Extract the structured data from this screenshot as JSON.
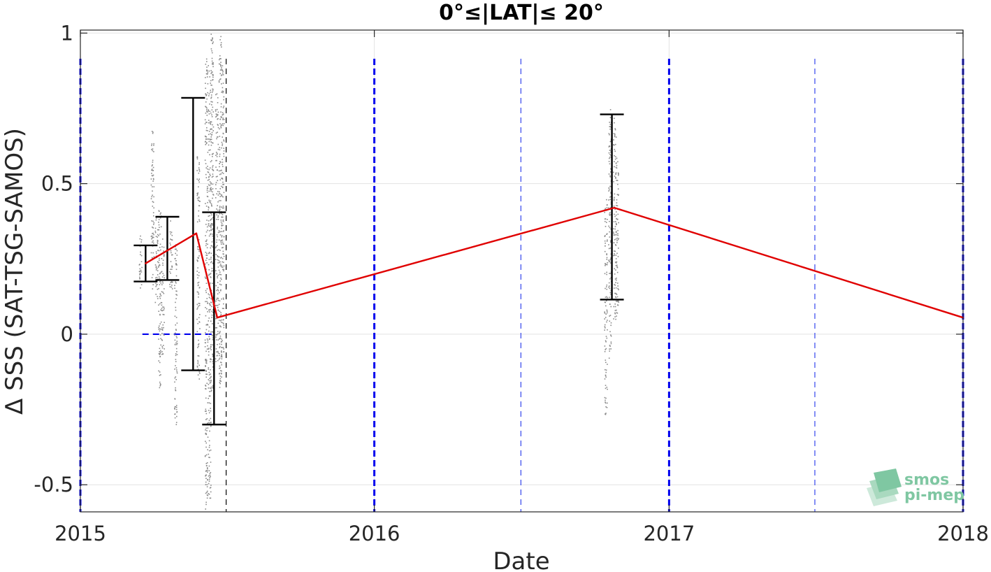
{
  "chart_data": {
    "type": "line",
    "title": "0°≤|LAT|≤ 20°",
    "xlabel": "Date",
    "ylabel": "Δ SSS (SAT-TSG-SAMOS)",
    "xlim": [
      "2015-01-01",
      "2018-01-01"
    ],
    "ylim": [
      -0.59,
      1.01
    ],
    "xticks": [
      {
        "date": "2015-01-01",
        "label": "2015"
      },
      {
        "date": "2016-01-01",
        "label": "2016"
      },
      {
        "date": "2017-01-01",
        "label": "2017"
      },
      {
        "date": "2018-01-01",
        "label": "2018"
      }
    ],
    "yticks": [
      {
        "value": 1,
        "label": "1"
      },
      {
        "value": 0.5,
        "label": "0.5"
      },
      {
        "value": 0,
        "label": "0"
      },
      {
        "value": -0.5,
        "label": "-0.5"
      }
    ],
    "grid": true,
    "series": [
      {
        "kind": "mean-line",
        "color": "#e00000",
        "points": [
          {
            "x": "2015-03-23",
            "y": 0.235
          },
          {
            "x": "2015-05-25",
            "y": 0.335
          },
          {
            "x": "2015-06-20",
            "y": 0.055
          },
          {
            "x": "2016-10-25",
            "y": 0.42
          },
          {
            "x": "2018-01-01",
            "y": 0.055
          }
        ]
      },
      {
        "kind": "errorbars",
        "color": "#000000",
        "bars": [
          {
            "x": "2015-03-23",
            "low": 0.175,
            "high": 0.295
          },
          {
            "x": "2015-04-19",
            "low": 0.18,
            "high": 0.39
          },
          {
            "x": "2015-05-21",
            "low": -0.12,
            "high": 0.785
          },
          {
            "x": "2015-06-16",
            "low": -0.3,
            "high": 0.405
          },
          {
            "x": "2016-10-22",
            "low": 0.115,
            "high": 0.73
          }
        ]
      },
      {
        "kind": "scatter-columns",
        "color": "#8a8a8a",
        "columns": [
          {
            "x": "2015-03-16",
            "low": 0.15,
            "high": 0.35
          },
          {
            "x": "2015-03-31",
            "low": 0.15,
            "high": 0.68
          },
          {
            "x": "2015-04-05",
            "low": 0.1,
            "high": 0.4
          },
          {
            "x": "2015-04-09",
            "low": -0.18,
            "high": 0.42
          },
          {
            "x": "2015-04-13",
            "low": -0.08,
            "high": 0.32
          },
          {
            "x": "2015-04-23",
            "low": 0.15,
            "high": 0.38
          },
          {
            "x": "2015-04-29",
            "low": -0.31,
            "high": 0.3
          },
          {
            "x": "2015-05-27",
            "low": -0.15,
            "high": 0.6
          },
          {
            "x": "2015-06-06",
            "low": -0.58,
            "high": 0.92
          },
          {
            "x": "2015-06-10",
            "low": -0.55,
            "high": 0.9
          },
          {
            "x": "2015-06-13",
            "low": -0.2,
            "high": 1.0
          },
          {
            "x": "2015-06-19",
            "low": -0.1,
            "high": 0.8
          },
          {
            "x": "2015-06-23",
            "low": -0.18,
            "high": 1.0
          },
          {
            "x": "2015-06-26",
            "low": -0.1,
            "high": 0.9
          },
          {
            "x": "2016-10-14",
            "low": -0.28,
            "high": 0.45
          },
          {
            "x": "2016-10-19",
            "low": -0.08,
            "high": 0.75
          },
          {
            "x": "2016-10-25",
            "low": 0.05,
            "high": 0.72
          },
          {
            "x": "2016-10-28",
            "low": 0.06,
            "high": 0.6
          }
        ]
      }
    ],
    "reference_lines": [
      {
        "orientation": "horizontal",
        "y": 0,
        "x_from": "2015-03-19",
        "x_to": "2015-06-16",
        "color": "#0000ee",
        "style": "dashed"
      },
      {
        "orientation": "vertical",
        "x": "2015-01-01",
        "color": "#0000ee",
        "style": "dashed",
        "weight": "heavy"
      },
      {
        "orientation": "vertical",
        "x": "2016-01-01",
        "color": "#0000ee",
        "style": "dashed",
        "weight": "heavy"
      },
      {
        "orientation": "vertical",
        "x": "2017-01-01",
        "color": "#0000ee",
        "style": "dashed",
        "weight": "heavy"
      },
      {
        "orientation": "vertical",
        "x": "2018-01-01",
        "color": "#0000ee",
        "style": "dashed",
        "weight": "heavy"
      },
      {
        "orientation": "vertical",
        "x": "2016-07-01",
        "color": "#3344ee",
        "style": "dashed",
        "weight": "light"
      },
      {
        "orientation": "vertical",
        "x": "2017-07-01",
        "color": "#3344ee",
        "style": "dashed",
        "weight": "light"
      },
      {
        "orientation": "vertical",
        "x": "2015-07-01",
        "color": "#000000",
        "style": "dashed",
        "weight": "light"
      }
    ],
    "watermark": {
      "line1": "smos",
      "line2": "pi-mep",
      "color": "#7fc7a2"
    }
  }
}
